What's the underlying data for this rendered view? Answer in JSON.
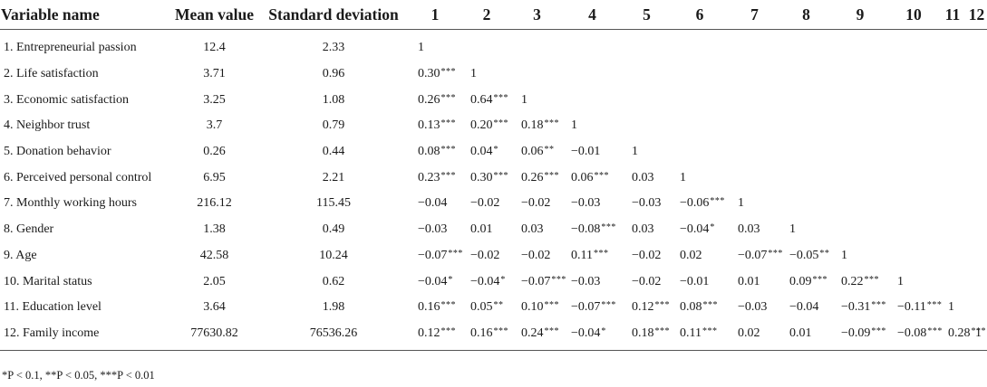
{
  "table": {
    "headers": [
      "Variable name",
      "Mean value",
      "Standard deviation",
      "1",
      "2",
      "3",
      "4",
      "5",
      "6",
      "7",
      "8",
      "9",
      "10",
      "11",
      "12"
    ],
    "rows": [
      {
        "name": "1. Entrepreneurial passion",
        "mean": "12.4",
        "sd": "2.33",
        "cells": [
          [
            "1",
            ""
          ]
        ]
      },
      {
        "name": "2. Life satisfaction",
        "mean": "3.71",
        "sd": "0.96",
        "cells": [
          [
            "0.30",
            "***"
          ],
          [
            "1",
            ""
          ]
        ]
      },
      {
        "name": "3. Economic satisfaction",
        "mean": "3.25",
        "sd": "1.08",
        "cells": [
          [
            "0.26",
            "***"
          ],
          [
            "0.64",
            "***"
          ],
          [
            "1",
            ""
          ]
        ]
      },
      {
        "name": "4. Neighbor trust",
        "mean": "3.7",
        "sd": "0.79",
        "cells": [
          [
            "0.13",
            "***"
          ],
          [
            "0.20",
            "***"
          ],
          [
            "0.18",
            "***"
          ],
          [
            "1",
            ""
          ]
        ]
      },
      {
        "name": "5. Donation behavior",
        "mean": "0.26",
        "sd": "0.44",
        "cells": [
          [
            "0.08",
            "***"
          ],
          [
            "0.04",
            "*"
          ],
          [
            "0.06",
            "**"
          ],
          [
            "−0.01",
            ""
          ],
          [
            "1",
            ""
          ]
        ]
      },
      {
        "name": "6. Perceived personal control",
        "mean": "6.95",
        "sd": "2.21",
        "cells": [
          [
            "0.23",
            "***"
          ],
          [
            "0.30",
            "***"
          ],
          [
            "0.26",
            "***"
          ],
          [
            "0.06",
            "***"
          ],
          [
            "0.03",
            ""
          ],
          [
            "1",
            ""
          ]
        ]
      },
      {
        "name": "7. Monthly working hours",
        "mean": "216.12",
        "sd": "115.45",
        "cells": [
          [
            "−0.04",
            ""
          ],
          [
            "−0.02",
            ""
          ],
          [
            "−0.02",
            ""
          ],
          [
            "−0.03",
            ""
          ],
          [
            "−0.03",
            ""
          ],
          [
            "−0.06",
            "***"
          ],
          [
            "1",
            ""
          ]
        ]
      },
      {
        "name": "8. Gender",
        "mean": "1.38",
        "sd": "0.49",
        "cells": [
          [
            "−0.03",
            ""
          ],
          [
            "0.01",
            ""
          ],
          [
            "0.03",
            ""
          ],
          [
            "−0.08",
            "***"
          ],
          [
            "0.03",
            ""
          ],
          [
            "−0.04",
            "*"
          ],
          [
            "0.03",
            ""
          ],
          [
            "1",
            ""
          ]
        ]
      },
      {
        "name": "9. Age",
        "mean": "42.58",
        "sd": "10.24",
        "cells": [
          [
            "−0.07",
            "***"
          ],
          [
            "−0.02",
            ""
          ],
          [
            "−0.02",
            ""
          ],
          [
            "0.11",
            "***"
          ],
          [
            "−0.02",
            ""
          ],
          [
            "0.02",
            ""
          ],
          [
            "−0.07",
            "***"
          ],
          [
            "−0.05",
            "**"
          ],
          [
            "1",
            ""
          ]
        ]
      },
      {
        "name": "10. Marital status",
        "mean": "2.05",
        "sd": "0.62",
        "cells": [
          [
            "−0.04",
            "*"
          ],
          [
            "−0.04",
            "*"
          ],
          [
            "−0.07",
            "***"
          ],
          [
            "−0.03",
            ""
          ],
          [
            "−0.02",
            ""
          ],
          [
            "−0.01",
            ""
          ],
          [
            "0.01",
            ""
          ],
          [
            "0.09",
            "***"
          ],
          [
            "0.22",
            "***"
          ],
          [
            "1",
            ""
          ]
        ]
      },
      {
        "name": "11. Education level",
        "mean": "3.64",
        "sd": "1.98",
        "cells": [
          [
            "0.16",
            "***"
          ],
          [
            "0.05",
            "**"
          ],
          [
            "0.10",
            "***"
          ],
          [
            "−0.07",
            "***"
          ],
          [
            "0.12",
            "***"
          ],
          [
            "0.08",
            "***"
          ],
          [
            "−0.03",
            ""
          ],
          [
            "−0.04",
            ""
          ],
          [
            "−0.31",
            "***"
          ],
          [
            "−0.11",
            "***"
          ],
          [
            "1",
            ""
          ]
        ]
      },
      {
        "name": "12. Family income",
        "mean": "77630.82",
        "sd": "76536.26",
        "cells": [
          [
            "0.12",
            "***"
          ],
          [
            "0.16",
            "***"
          ],
          [
            "0.24",
            "***"
          ],
          [
            "−0.04",
            "*"
          ],
          [
            "0.18",
            "***"
          ],
          [
            "0.11",
            "***"
          ],
          [
            "0.02",
            ""
          ],
          [
            "0.01",
            ""
          ],
          [
            "−0.09",
            "***"
          ],
          [
            "−0.08",
            "***"
          ],
          [
            "0.28",
            "***"
          ],
          [
            "1",
            ""
          ]
        ]
      }
    ]
  },
  "footnote": "*P < 0.1, **P < 0.05, ***P < 0.01"
}
